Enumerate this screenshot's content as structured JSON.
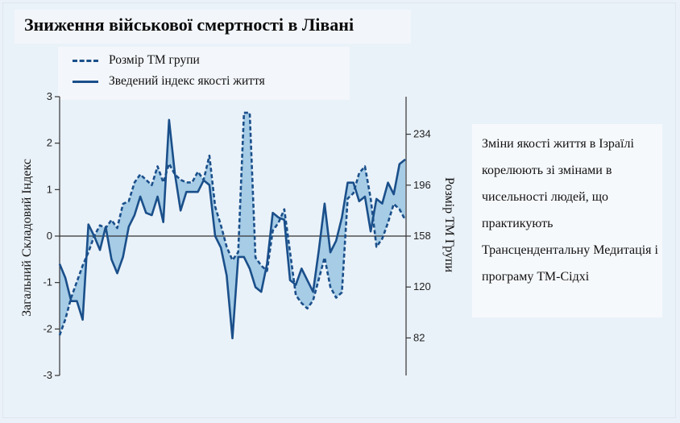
{
  "title": "Зниження військової смертності в Лівані",
  "legend": [
    {
      "label": "Розмір ТМ групи",
      "style": "dashed"
    },
    {
      "label": "Зведений індекс якості життя",
      "style": "solid"
    }
  ],
  "note": "Зміни якості життя в Ізраїлі корелюють зі змінами в чисельності людей, що практикують Трансцендентальну Медитація і програму ТМ-Сідхі",
  "colors": {
    "line": "#1a4f8a",
    "fill": "#8fbfdf",
    "axis": "#333333"
  },
  "chart_data": {
    "type": "line",
    "title": "Зниження військової смертності в Лівані",
    "ylabel": "Загальний Складовий Індекс",
    "y2label": "Розмір ТМ Групи",
    "ylim": [
      -3,
      3
    ],
    "yticks": [
      "3",
      "2",
      "1",
      "0",
      "-1",
      "-2",
      "-3"
    ],
    "y2lim": [
      54,
      262
    ],
    "y2ticks": [
      234,
      196,
      158,
      120,
      82
    ],
    "grid": false,
    "legend_position": "top-left",
    "series": [
      {
        "name": "Зведений індекс якості життя",
        "style": "solid",
        "axis": "left",
        "values": [
          -0.6,
          -0.9,
          -1.4,
          -1.4,
          -1.8,
          0.25,
          0.0,
          -0.3,
          0.2,
          -0.5,
          -0.8,
          -0.45,
          0.2,
          0.45,
          0.85,
          0.5,
          0.45,
          0.85,
          0.3,
          2.5,
          1.35,
          0.55,
          0.95,
          0.95,
          0.95,
          1.2,
          1.1,
          0.0,
          -0.25,
          -0.85,
          -2.2,
          -0.45,
          -0.45,
          -0.7,
          -1.1,
          -1.2,
          -0.6,
          0.5,
          0.4,
          0.35,
          -0.95,
          -1.05,
          -0.7,
          -0.95,
          -1.2,
          -0.3,
          0.7,
          -0.35,
          -0.1,
          0.4,
          1.15,
          1.15,
          0.75,
          0.85,
          0.1,
          0.8,
          0.7,
          1.15,
          0.9,
          1.55,
          1.65
        ]
      },
      {
        "name": "Розмір ТМ групи",
        "style": "dashed",
        "axis": "right",
        "values": [
          84,
          96,
          112,
          124,
          136,
          146,
          158,
          166,
          164,
          170,
          164,
          182,
          184,
          198,
          204,
          200,
          196,
          210,
          198,
          212,
          204,
          200,
          198,
          198,
          206,
          200,
          218,
          180,
          166,
          150,
          140,
          146,
          250,
          250,
          142,
          136,
          132,
          162,
          168,
          178,
          146,
          114,
          108,
          104,
          110,
          126,
          142,
          120,
          112,
          116,
          186,
          190,
          205,
          210,
          186,
          150,
          156,
          168,
          182,
          178,
          170
        ]
      }
    ]
  }
}
